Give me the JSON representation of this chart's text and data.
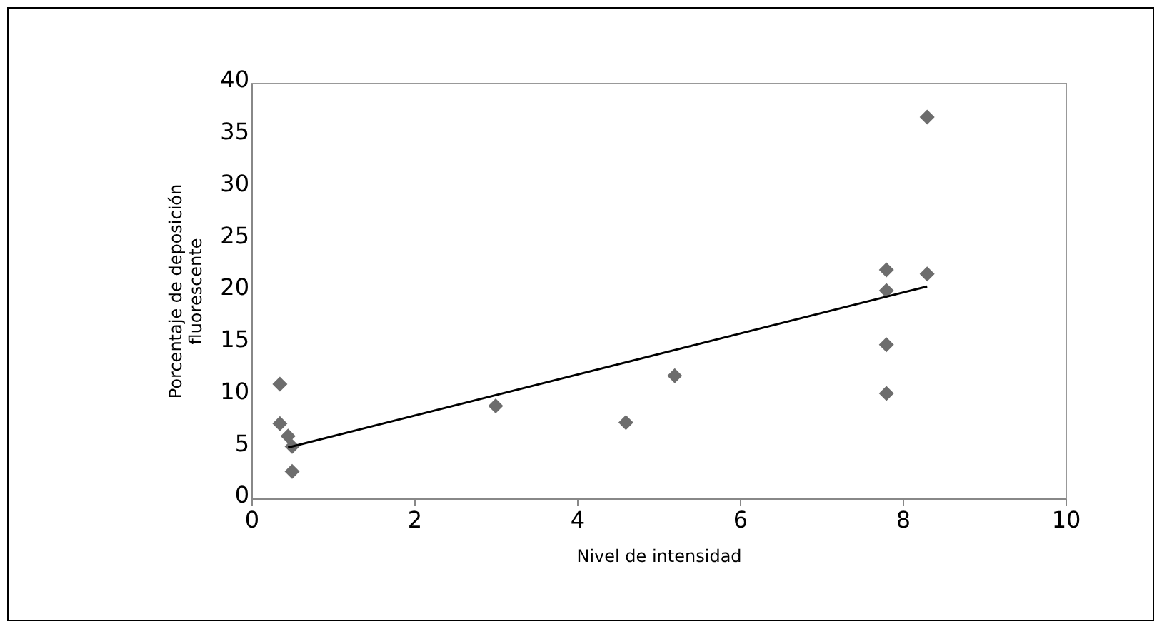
{
  "chart_data": {
    "type": "scatter",
    "xlabel": "Nivel de intensidad",
    "ylabel": "Porcentaje de deposición\nfluorescente",
    "xlim": [
      0,
      10
    ],
    "xticks": [
      0,
      2,
      4,
      6,
      8,
      10
    ],
    "ylim": [
      0,
      40
    ],
    "yticks": [
      0,
      5,
      10,
      15,
      20,
      25,
      30,
      35,
      40
    ],
    "grid": false,
    "series": [
      {
        "color": "#6d6d6d",
        "marker": "diamond",
        "x": [
          0.35,
          0.35,
          0.45,
          0.5,
          0.5,
          3,
          4.6,
          5.2,
          7.8,
          7.8,
          7.8,
          7.8,
          8.3,
          8.3
        ],
        "values": [
          11,
          7.2,
          6,
          5,
          2.6,
          8.9,
          7.3,
          11.8,
          22,
          20,
          14.8,
          10.1,
          36.7,
          21.6
        ]
      },
      {
        "type": "line",
        "color": "#000000",
        "x": [
          0.45,
          8.3
        ],
        "values": [
          4.9,
          20.4
        ]
      }
    ]
  }
}
